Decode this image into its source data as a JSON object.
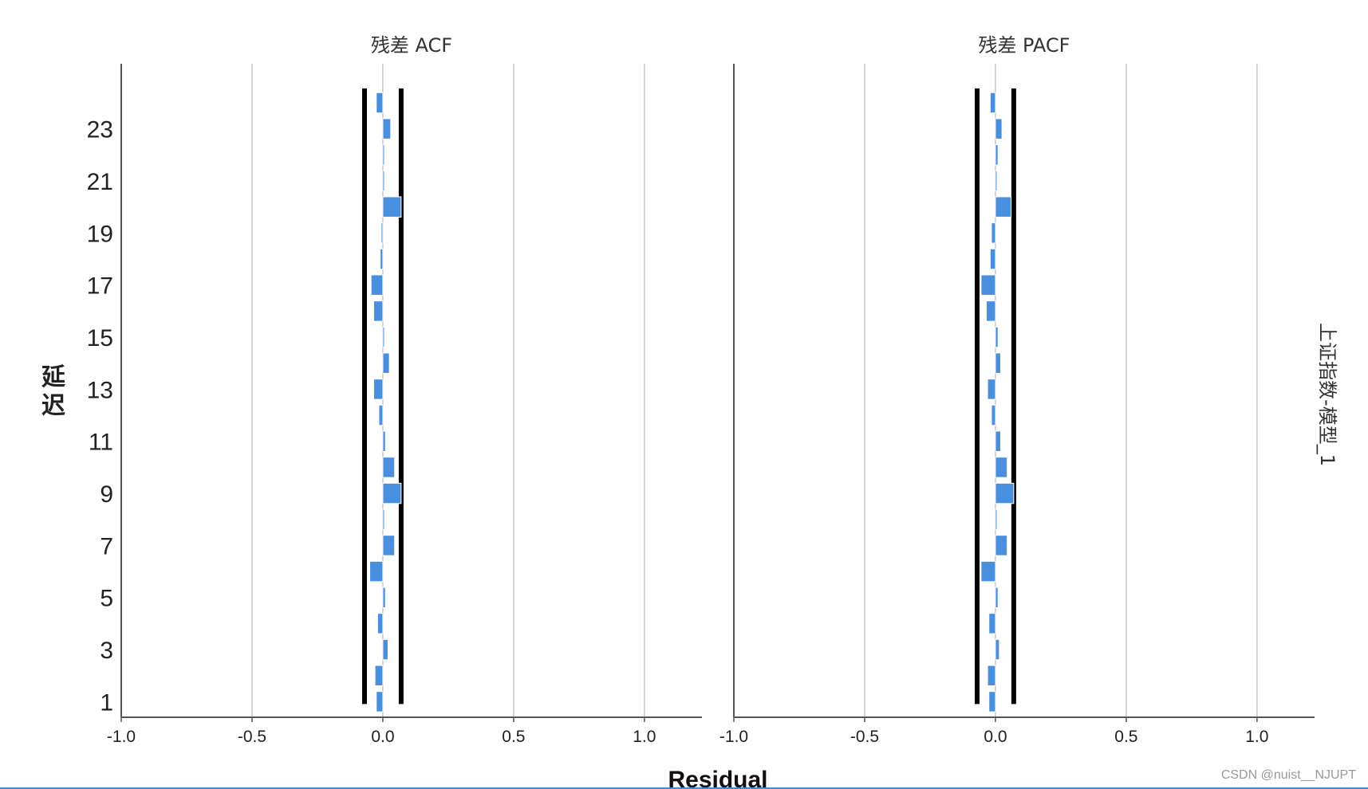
{
  "chart_data": [
    {
      "type": "bar",
      "title": "残差 ACF",
      "x_tick_labels": [
        "-1.0",
        "-0.5",
        "0.0",
        "0.5",
        "1.0"
      ],
      "x_ticks": [
        -1.0,
        -0.5,
        0.0,
        0.5,
        1.0
      ],
      "xlim": [
        -1.0,
        1.22
      ],
      "ylim": [
        0.4,
        25.5
      ],
      "y_tick_labels": [
        "1",
        "3",
        "5",
        "7",
        "9",
        "11",
        "13",
        "15",
        "17",
        "19",
        "21",
        "23"
      ],
      "y_ticks": [
        1,
        3,
        5,
        7,
        9,
        11,
        13,
        15,
        17,
        19,
        21,
        23
      ],
      "lags": [
        1,
        2,
        3,
        4,
        5,
        6,
        7,
        8,
        9,
        10,
        11,
        12,
        13,
        14,
        15,
        16,
        17,
        18,
        19,
        20,
        21,
        22,
        23,
        24
      ],
      "values": [
        -0.025,
        -0.03,
        0.02,
        -0.02,
        0.01,
        -0.05,
        0.045,
        0.0,
        0.07,
        0.045,
        0.01,
        -0.015,
        -0.035,
        0.025,
        0.0,
        -0.035,
        -0.045,
        -0.01,
        -0.005,
        0.07,
        0.0,
        0.0,
        0.03,
        -0.025
      ],
      "confidence_limits": [
        -0.07,
        0.07
      ],
      "grid": "vertical"
    },
    {
      "type": "bar",
      "title": "残差 PACF",
      "x_tick_labels": [
        "-1.0",
        "-0.5",
        "0.0",
        "0.5",
        "1.0"
      ],
      "x_ticks": [
        -1.0,
        -0.5,
        0.0,
        0.5,
        1.0
      ],
      "xlim": [
        -1.0,
        1.22
      ],
      "ylim": [
        0.4,
        25.5
      ],
      "lags": [
        1,
        2,
        3,
        4,
        5,
        6,
        7,
        8,
        9,
        10,
        11,
        12,
        13,
        14,
        15,
        16,
        17,
        18,
        19,
        20,
        21,
        22,
        23,
        24
      ],
      "values": [
        -0.025,
        -0.03,
        0.015,
        -0.025,
        0.01,
        -0.055,
        0.045,
        0.0,
        0.07,
        0.045,
        0.02,
        -0.015,
        -0.03,
        0.02,
        0.01,
        -0.035,
        -0.055,
        -0.02,
        -0.015,
        0.06,
        0.0,
        0.01,
        0.025,
        -0.02
      ],
      "confidence_limits": [
        -0.07,
        0.07
      ],
      "grid": "vertical"
    }
  ],
  "y_axis_label": "延迟",
  "x_axis_label": "Residual",
  "panel_label": "上证指数-模型_1",
  "watermark": "CSDN @nuist__NJUPT",
  "colors": {
    "bar": "#4a8fde",
    "confidence": "#000000",
    "grid": "#c8c8c8",
    "axis": "#555555",
    "rule": "#3b8fd6"
  }
}
